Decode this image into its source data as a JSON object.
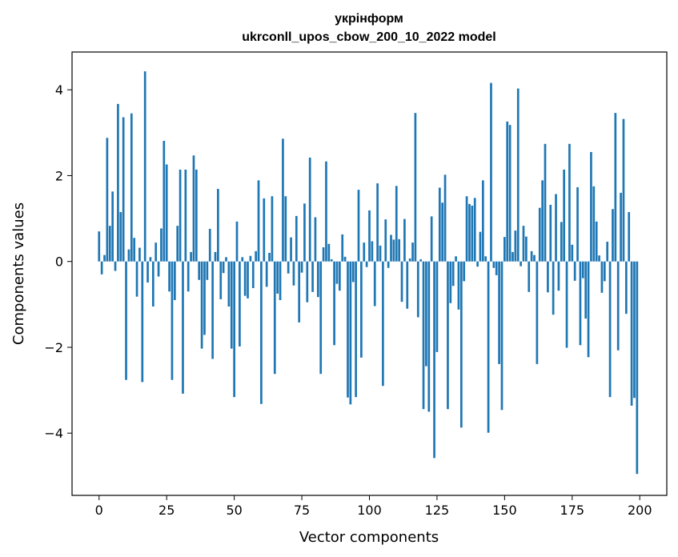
{
  "chart_data": {
    "type": "bar",
    "title_line1": "укрінформ",
    "title_line2": "ukrconll_upos_cbow_200_10_2022 model",
    "xlabel": "Vector components",
    "ylabel": "Components values",
    "xlim": [
      -10,
      210
    ],
    "ylim": [
      -5.45,
      4.88
    ],
    "xticks": [
      0,
      25,
      50,
      75,
      100,
      125,
      150,
      175,
      200
    ],
    "yticks": [
      -4,
      -2,
      0,
      2,
      4
    ],
    "ytick_labels": [
      "−4",
      "−2",
      "0",
      "2",
      "4"
    ],
    "bar_color": "#1f77b4",
    "grid": false,
    "values": [
      0.7,
      -0.3,
      0.15,
      2.88,
      0.83,
      1.63,
      -0.22,
      3.67,
      1.15,
      3.36,
      -2.76,
      0.28,
      3.45,
      0.55,
      -0.82,
      0.32,
      -2.81,
      4.43,
      -0.49,
      0.1,
      -1.05,
      0.44,
      -0.35,
      0.77,
      2.81,
      2.26,
      -0.7,
      -2.76,
      -0.9,
      0.83,
      2.14,
      -3.08,
      2.14,
      -0.7,
      0.22,
      2.47,
      2.14,
      -0.43,
      -2.03,
      -1.71,
      -0.43,
      0.76,
      -2.27,
      0.22,
      1.69,
      -0.88,
      -0.27,
      0.1,
      -1.05,
      -2.03,
      -3.16,
      0.93,
      -1.98,
      0.1,
      -0.8,
      -0.86,
      0.13,
      -0.62,
      0.24,
      1.89,
      -3.32,
      1.47,
      -0.59,
      0.2,
      1.52,
      -2.62,
      -0.75,
      -0.9,
      2.86,
      1.52,
      -0.28,
      0.56,
      -0.56,
      1.06,
      -1.42,
      -0.26,
      1.35,
      -0.95,
      2.42,
      -0.71,
      1.03,
      -0.83,
      -2.62,
      0.33,
      2.33,
      0.41,
      0.05,
      -1.95,
      -0.52,
      -0.68,
      0.63,
      0.11,
      -3.17,
      -3.33,
      -0.48,
      -3.16,
      1.67,
      -2.24,
      0.44,
      -0.13,
      1.19,
      0.47,
      -1.04,
      1.82,
      0.37,
      -2.9,
      0.98,
      -0.15,
      0.62,
      0.51,
      1.76,
      0.52,
      -0.94,
      0.99,
      -1.1,
      0.07,
      0.44,
      3.46,
      -1.3,
      0.05,
      -3.44,
      -2.44,
      -3.5,
      1.05,
      -4.58,
      -2.11,
      1.72,
      1.37,
      2.02,
      -3.44,
      -0.97,
      -0.57,
      0.12,
      -1.12,
      -3.87,
      -0.46,
      1.52,
      1.34,
      1.3,
      1.48,
      -0.12,
      0.69,
      1.89,
      0.12,
      -3.99,
      4.16,
      -0.15,
      -0.32,
      -2.39,
      -3.46,
      0.57,
      3.26,
      3.18,
      0.22,
      0.72,
      4.03,
      -0.11,
      0.83,
      0.58,
      -0.71,
      0.24,
      0.15,
      -2.39,
      1.25,
      1.89,
      2.74,
      -0.72,
      1.32,
      -1.24,
      1.57,
      -0.68,
      0.92,
      2.14,
      -2.01,
      2.74,
      0.39,
      -0.45,
      1.73,
      -1.95,
      -0.39,
      -1.33,
      -2.23,
      2.55,
      1.75,
      0.93,
      0.14,
      -0.73,
      -0.46,
      0.46,
      -3.16,
      1.22,
      3.46,
      -2.07,
      1.6,
      3.32,
      -1.22,
      1.15,
      -3.36,
      -3.18,
      -4.95
    ]
  }
}
